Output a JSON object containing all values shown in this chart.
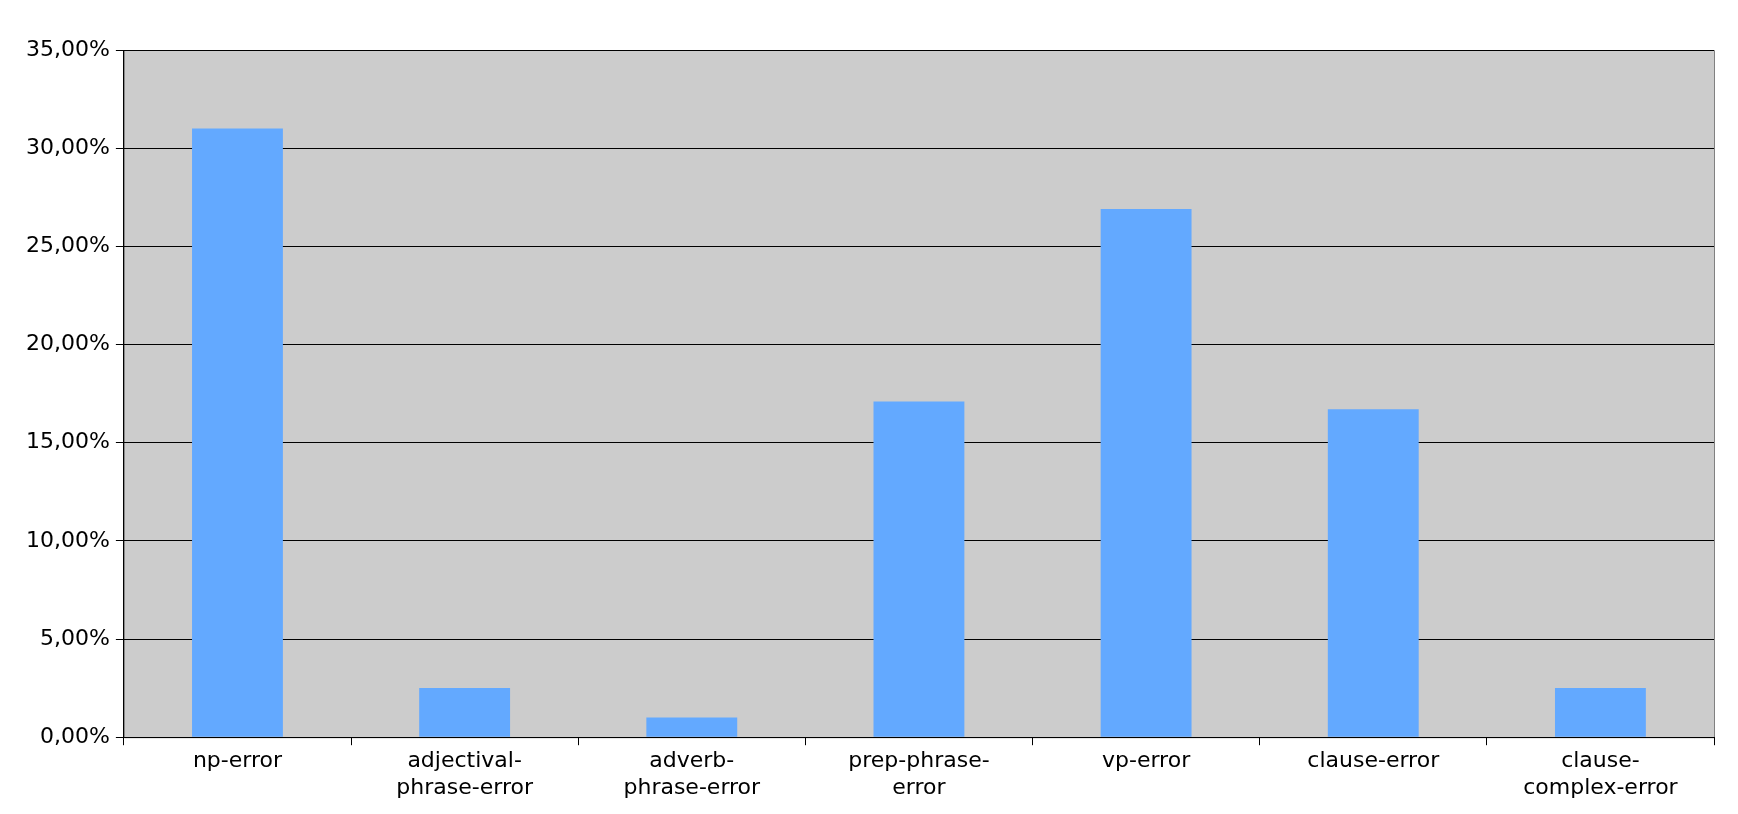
{
  "chart_data": {
    "type": "bar",
    "categories": [
      "np-error",
      "adjectival-phrase-error",
      "adverb-phrase-error",
      "prep-phrase-error",
      "vp-error",
      "clause-error",
      "clause-complex-error"
    ],
    "values": [
      31.0,
      2.5,
      1.0,
      17.1,
      26.9,
      16.7,
      2.5
    ],
    "color": "#63a9ff",
    "ylim": [
      0,
      35
    ],
    "yticks": [
      {
        "value": 0,
        "label": "0,00%"
      },
      {
        "value": 5,
        "label": "5,00%"
      },
      {
        "value": 10,
        "label": "10,00%"
      },
      {
        "value": 15,
        "label": "15,00%"
      },
      {
        "value": 20,
        "label": "20,00%"
      },
      {
        "value": 25,
        "label": "25,00%"
      },
      {
        "value": 30,
        "label": "30,00%"
      },
      {
        "value": 35,
        "label": "35,00%"
      }
    ],
    "grid": "y",
    "legend": false
  }
}
